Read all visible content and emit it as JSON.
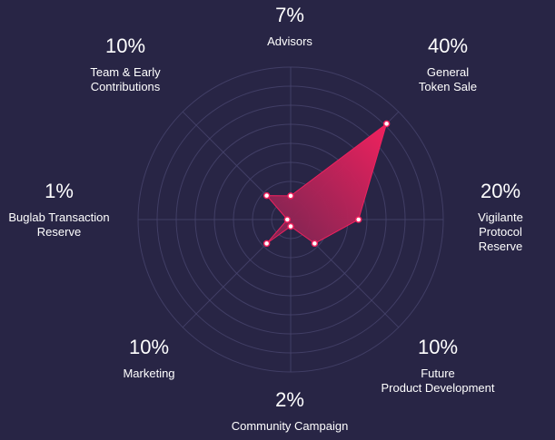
{
  "chart_data": {
    "type": "radar",
    "title": "",
    "categories": [
      "Advisors",
      "General\nToken Sale",
      "Vigilante\nProtocol Reserve",
      "Future\nProduct Development",
      "Community Campaign",
      "Marketing",
      "Buglab Transaction\nReserve",
      "Team & Early\nContributions"
    ],
    "percent_labels": [
      "7%",
      "40%",
      "20%",
      "10%",
      "2%",
      "10%",
      "1%",
      "10%"
    ],
    "values": [
      7,
      40,
      20,
      10,
      2,
      10,
      1,
      10
    ],
    "rlim": [
      0,
      45
    ],
    "rings": 8,
    "grid": true
  },
  "colors": {
    "background": "#282545",
    "grid": "#4a4770",
    "fill_start": "#f0215e",
    "fill_end": "#7a2552",
    "point_fill": "#ffffff",
    "point_stroke": "#f0215e"
  }
}
